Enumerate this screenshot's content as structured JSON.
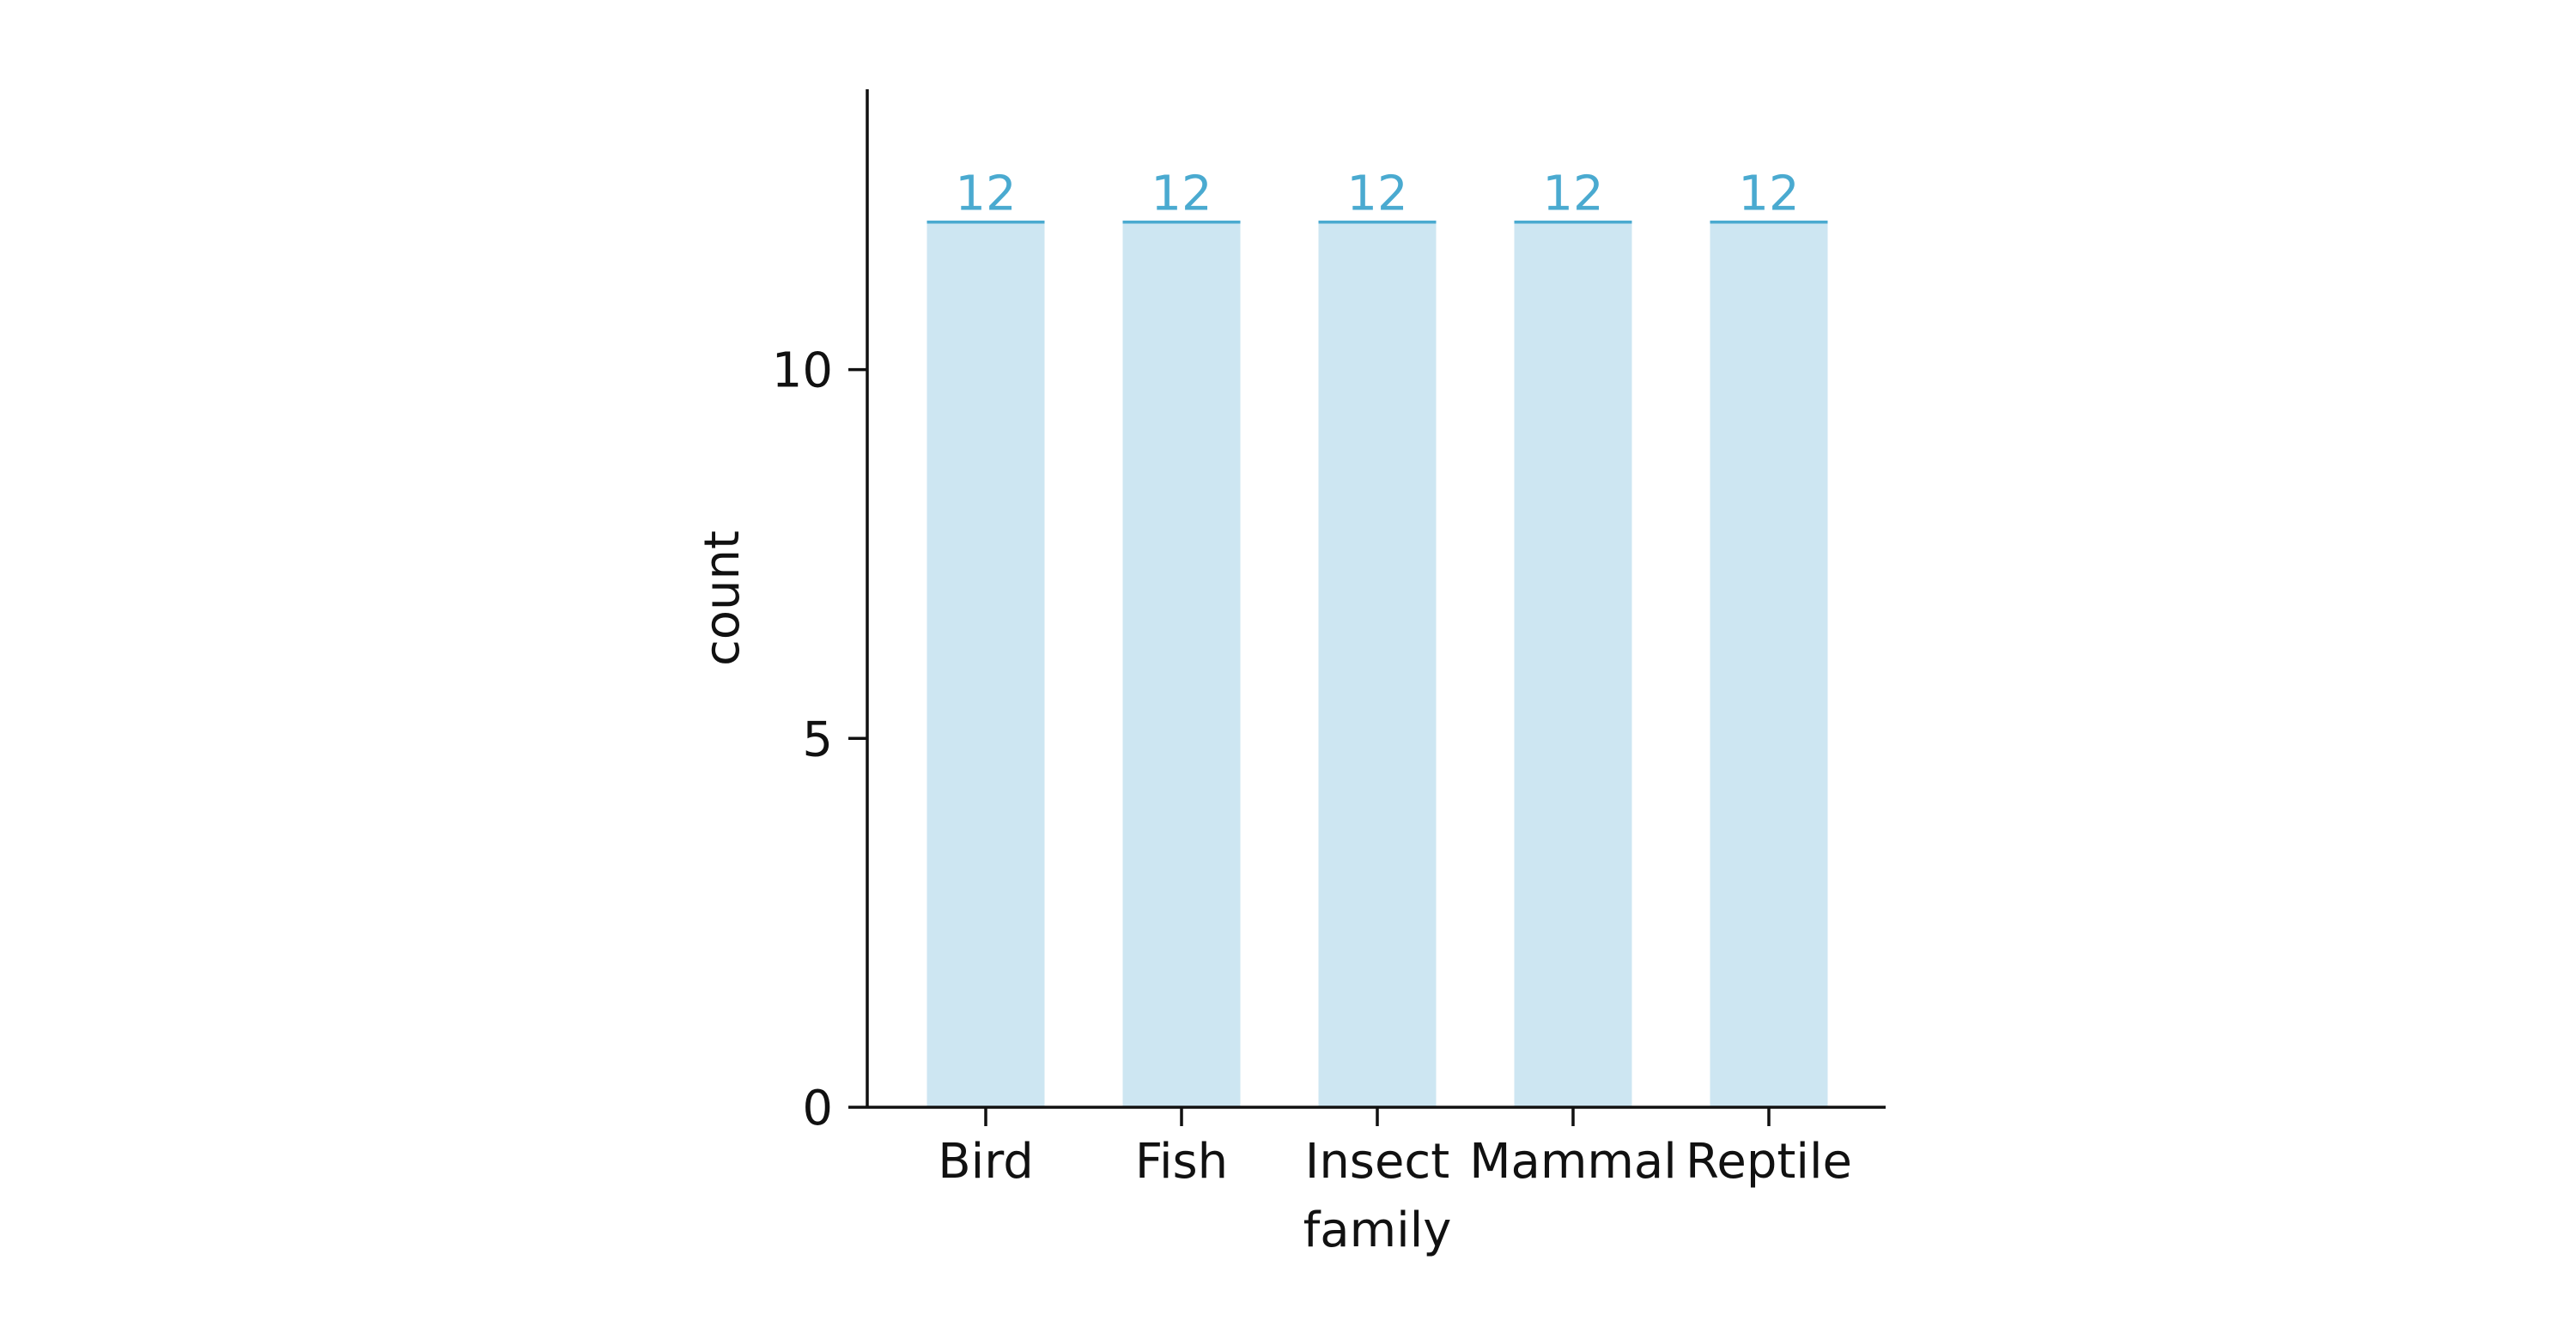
{
  "chart_data": {
    "type": "bar",
    "categories": [
      "Bird",
      "Fish",
      "Insect",
      "Mammal",
      "Reptile"
    ],
    "values": [
      12,
      12,
      12,
      12,
      12
    ],
    "data_labels": [
      "12",
      "12",
      "12",
      "12",
      "12"
    ],
    "xlabel": "family",
    "ylabel": "count",
    "ylim": [
      0,
      13.8
    ],
    "yticks": [
      0,
      5,
      10
    ],
    "grid": false,
    "colors": {
      "bar_fill": "#cde6f2",
      "bar_top": "#4aaad0",
      "label": "#4aaad0",
      "axis": "#111111"
    }
  }
}
